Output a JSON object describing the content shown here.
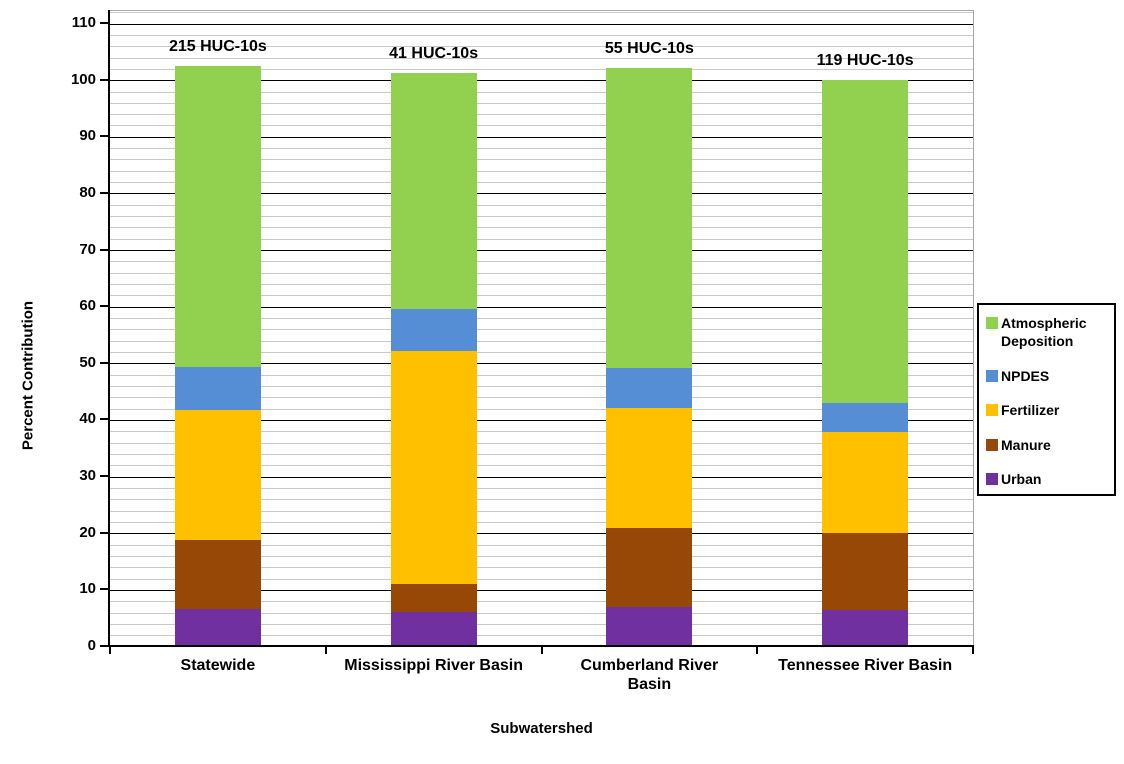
{
  "chart_data": {
    "type": "bar",
    "stacked": true,
    "xlabel": "Subwatershed",
    "ylabel": "Percent Contribution",
    "ylim": [
      0,
      112.3
    ],
    "y_major_tick": 10,
    "y_minor_tick": 2,
    "y_axis_label_max": 110,
    "grid": {
      "minor_color": "#c9c9c9",
      "major_color": "#000000"
    },
    "legend_position": "right",
    "categories": [
      {
        "label": "Statewide",
        "label_lines": [
          "Statewide"
        ],
        "annotation": "215 HUC-10s"
      },
      {
        "label": "Mississippi River Basin",
        "label_lines": [
          "Mississippi River Basin"
        ],
        "annotation": "41 HUC-10s"
      },
      {
        "label": "Cumberland River Basin",
        "label_lines": [
          "Cumberland River",
          "Basin"
        ],
        "annotation": "55 HUC-10s"
      },
      {
        "label": "Tennessee River Basin",
        "label_lines": [
          "Tennessee River Basin"
        ],
        "annotation": "119 HUC-10s"
      }
    ],
    "series": [
      {
        "name": "Urban",
        "color": "#7030A0",
        "values": [
          6.7,
          6.2,
          7.0,
          6.5
        ]
      },
      {
        "name": "Manure",
        "color": "#974706",
        "values": [
          12.2,
          5.0,
          14.0,
          13.7
        ]
      },
      {
        "name": "Fertilizer",
        "color": "#FFC000",
        "values": [
          23.0,
          41.0,
          21.2,
          17.8
        ]
      },
      {
        "name": "NPDES",
        "color": "#558ED5",
        "values": [
          7.6,
          7.4,
          7.0,
          5.0
        ]
      },
      {
        "name": "Atmospheric Deposition",
        "color": "#92D050",
        "values": [
          53.1,
          41.7,
          53.0,
          57.2
        ]
      }
    ],
    "bar_totals": [
      102.6,
      101.3,
      102.2,
      100.2
    ],
    "legend_entries": [
      {
        "name": "Atmospheric Deposition",
        "lines": [
          "Atmospheric",
          "Deposition"
        ]
      },
      {
        "name": "NPDES",
        "lines": [
          "NPDES"
        ]
      },
      {
        "name": "Fertilizer",
        "lines": [
          "Fertilizer"
        ]
      },
      {
        "name": "Manure",
        "lines": [
          "Manure"
        ]
      },
      {
        "name": "Urban",
        "lines": [
          "Urban"
        ]
      }
    ]
  }
}
